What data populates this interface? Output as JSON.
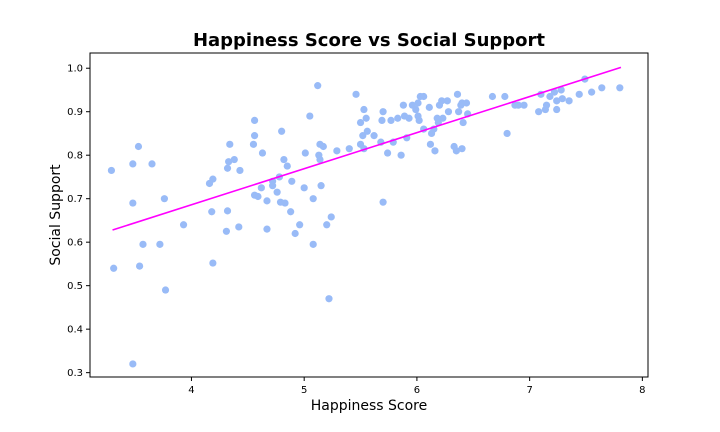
{
  "chart_data": {
    "type": "scatter",
    "title": "Happiness Score vs Social Support",
    "xlabel": "Happiness Score",
    "ylabel": "Social Support",
    "xlim": [
      3.1,
      8.05
    ],
    "ylim": [
      0.29,
      1.035
    ],
    "xticks": [
      "4",
      "5",
      "6",
      "7",
      "8"
    ],
    "yticks": [
      "0.3",
      "0.4",
      "0.5",
      "0.6",
      "0.7",
      "0.8",
      "0.9",
      "1.0"
    ],
    "grid": false,
    "legend": "none",
    "colors": {
      "points": "#99bbf7",
      "trend_line": "#ff00ff"
    },
    "points": [
      [
        3.29,
        0.765
      ],
      [
        3.31,
        0.54
      ],
      [
        3.48,
        0.78
      ],
      [
        3.48,
        0.69
      ],
      [
        3.48,
        0.32
      ],
      [
        3.53,
        0.82
      ],
      [
        3.54,
        0.545
      ],
      [
        3.57,
        0.595
      ],
      [
        3.65,
        0.78
      ],
      [
        3.72,
        0.595
      ],
      [
        3.76,
        0.7
      ],
      [
        3.77,
        0.49
      ],
      [
        3.93,
        0.64
      ],
      [
        4.16,
        0.735
      ],
      [
        4.18,
        0.67
      ],
      [
        4.19,
        0.745
      ],
      [
        4.19,
        0.552
      ],
      [
        4.31,
        0.625
      ],
      [
        4.32,
        0.672
      ],
      [
        4.32,
        0.77
      ],
      [
        4.33,
        0.785
      ],
      [
        4.34,
        0.825
      ],
      [
        4.38,
        0.79
      ],
      [
        4.42,
        0.635
      ],
      [
        4.43,
        0.765
      ],
      [
        4.55,
        0.825
      ],
      [
        4.56,
        0.88
      ],
      [
        4.56,
        0.845
      ],
      [
        4.56,
        0.708
      ],
      [
        4.59,
        0.705
      ],
      [
        4.62,
        0.725
      ],
      [
        4.63,
        0.805
      ],
      [
        4.67,
        0.695
      ],
      [
        4.67,
        0.63
      ],
      [
        4.72,
        0.74
      ],
      [
        4.72,
        0.73
      ],
      [
        4.76,
        0.715
      ],
      [
        4.78,
        0.75
      ],
      [
        4.79,
        0.692
      ],
      [
        4.8,
        0.855
      ],
      [
        4.82,
        0.79
      ],
      [
        4.83,
        0.69
      ],
      [
        4.85,
        0.775
      ],
      [
        4.88,
        0.67
      ],
      [
        4.89,
        0.74
      ],
      [
        4.92,
        0.62
      ],
      [
        4.96,
        0.64
      ],
      [
        5.0,
        0.725
      ],
      [
        5.01,
        0.805
      ],
      [
        5.05,
        0.89
      ],
      [
        5.08,
        0.595
      ],
      [
        5.08,
        0.7
      ],
      [
        5.12,
        0.96
      ],
      [
        5.13,
        0.8
      ],
      [
        5.14,
        0.79
      ],
      [
        5.14,
        0.825
      ],
      [
        5.15,
        0.73
      ],
      [
        5.17,
        0.82
      ],
      [
        5.2,
        0.64
      ],
      [
        5.22,
        0.47
      ],
      [
        5.24,
        0.658
      ],
      [
        5.29,
        0.81
      ],
      [
        5.4,
        0.815
      ],
      [
        5.46,
        0.94
      ],
      [
        5.5,
        0.825
      ],
      [
        5.5,
        0.875
      ],
      [
        5.52,
        0.845
      ],
      [
        5.53,
        0.815
      ],
      [
        5.53,
        0.905
      ],
      [
        5.55,
        0.885
      ],
      [
        5.56,
        0.855
      ],
      [
        5.62,
        0.845
      ],
      [
        5.68,
        0.83
      ],
      [
        5.69,
        0.88
      ],
      [
        5.7,
        0.692
      ],
      [
        5.7,
        0.9
      ],
      [
        5.74,
        0.805
      ],
      [
        5.77,
        0.88
      ],
      [
        5.79,
        0.83
      ],
      [
        5.83,
        0.885
      ],
      [
        5.86,
        0.8
      ],
      [
        5.88,
        0.915
      ],
      [
        5.89,
        0.89
      ],
      [
        5.91,
        0.84
      ],
      [
        5.93,
        0.885
      ],
      [
        5.96,
        0.915
      ],
      [
        5.99,
        0.905
      ],
      [
        6.01,
        0.92
      ],
      [
        6.01,
        0.89
      ],
      [
        6.02,
        0.88
      ],
      [
        6.03,
        0.935
      ],
      [
        6.06,
        0.86
      ],
      [
        6.06,
        0.935
      ],
      [
        6.11,
        0.91
      ],
      [
        6.12,
        0.825
      ],
      [
        6.13,
        0.85
      ],
      [
        6.15,
        0.86
      ],
      [
        6.16,
        0.81
      ],
      [
        6.18,
        0.885
      ],
      [
        6.19,
        0.875
      ],
      [
        6.2,
        0.915
      ],
      [
        6.22,
        0.925
      ],
      [
        6.23,
        0.885
      ],
      [
        6.27,
        0.925
      ],
      [
        6.28,
        0.9
      ],
      [
        6.33,
        0.82
      ],
      [
        6.35,
        0.81
      ],
      [
        6.36,
        0.94
      ],
      [
        6.37,
        0.9
      ],
      [
        6.39,
        0.915
      ],
      [
        6.4,
        0.92
      ],
      [
        6.4,
        0.815
      ],
      [
        6.41,
        0.875
      ],
      [
        6.44,
        0.92
      ],
      [
        6.45,
        0.895
      ],
      [
        6.67,
        0.935
      ],
      [
        6.78,
        0.935
      ],
      [
        6.8,
        0.85
      ],
      [
        6.87,
        0.915
      ],
      [
        6.9,
        0.915
      ],
      [
        6.95,
        0.915
      ],
      [
        7.08,
        0.9
      ],
      [
        7.1,
        0.94
      ],
      [
        7.14,
        0.905
      ],
      [
        7.15,
        0.915
      ],
      [
        7.18,
        0.935
      ],
      [
        7.22,
        0.945
      ],
      [
        7.24,
        0.905
      ],
      [
        7.24,
        0.925
      ],
      [
        7.28,
        0.95
      ],
      [
        7.29,
        0.93
      ],
      [
        7.35,
        0.925
      ],
      [
        7.44,
        0.94
      ],
      [
        7.49,
        0.975
      ],
      [
        7.55,
        0.945
      ],
      [
        7.64,
        0.955
      ],
      [
        7.8,
        0.955
      ]
    ],
    "trend_line": [
      [
        3.3,
        0.628
      ],
      [
        7.81,
        1.002
      ]
    ]
  }
}
